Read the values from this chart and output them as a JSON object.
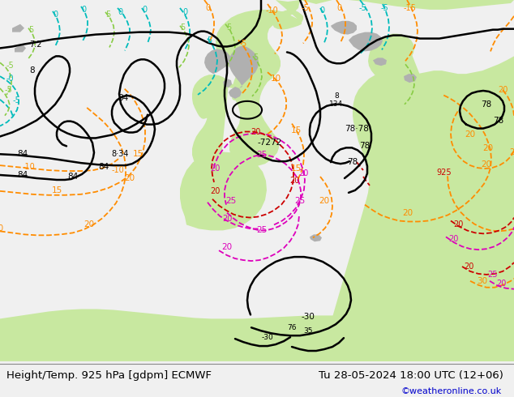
{
  "title_left": "Height/Temp. 925 hPa [gdpm] ECMWF",
  "title_right": "Tu 28-05-2024 18:00 UTC (12+06)",
  "watermark": "©weatheronline.co.uk",
  "bg_color": "#f0f0f0",
  "sea_color": "#d2d2d2",
  "land_green": "#c8e8a0",
  "land_grey": "#b0b0b0",
  "c_black": "#000000",
  "c_orange": "#ff8c00",
  "c_cyan": "#00bbbb",
  "c_ygreen": "#88cc44",
  "c_red": "#cc0000",
  "c_magenta": "#dd00bb",
  "c_blue": "#0044cc",
  "lfs": 7.5,
  "title_fs": 9.5,
  "watermark_fs": 8.0,
  "watermark_color": "#0000cc",
  "figwidth": 6.34,
  "figheight": 4.9,
  "dpi": 100
}
